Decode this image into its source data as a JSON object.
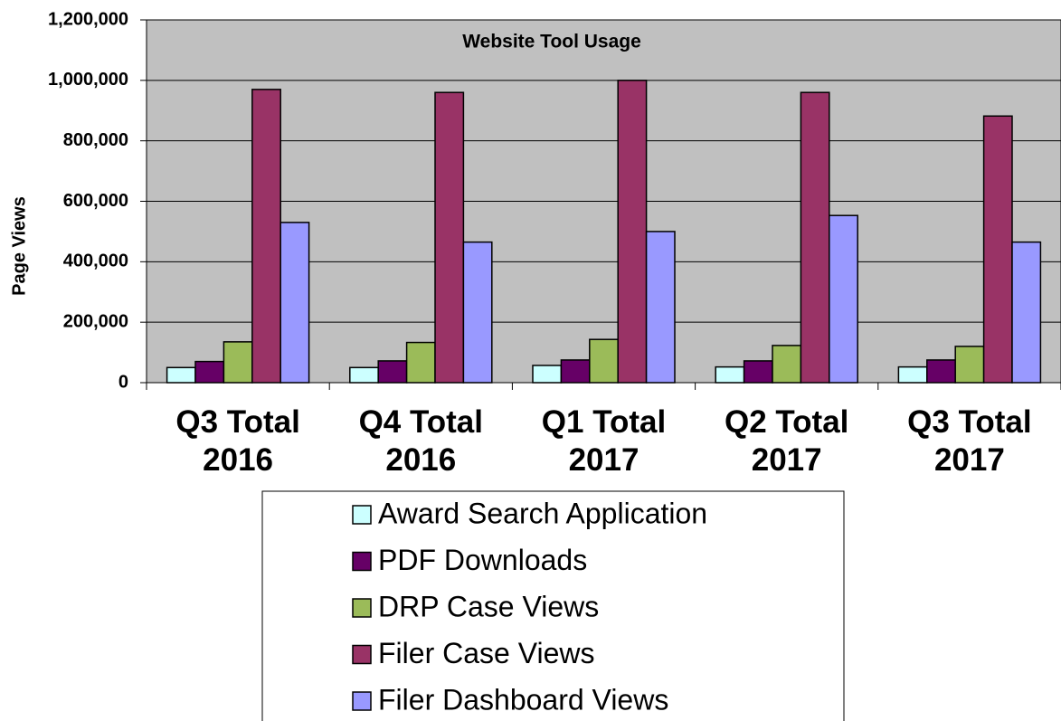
{
  "chart_data": {
    "type": "bar",
    "title": "Website Tool Usage",
    "y_label": "Page Views",
    "categories": [
      "Q3 Total 2016",
      "Q4 Total 2016",
      "Q1 Total 2017",
      "Q2 Total 2017",
      "Q3 Total 2017"
    ],
    "series": [
      {
        "name": "Award Search Application",
        "color": "#ccffff",
        "values": [
          50000,
          50000,
          57000,
          52000,
          52000
        ]
      },
      {
        "name": "PDF Downloads",
        "color": "#660066",
        "values": [
          70000,
          72000,
          75000,
          72000,
          75000
        ]
      },
      {
        "name": "DRP Case Views",
        "color": "#9bbb59",
        "values": [
          135000,
          133000,
          143000,
          123000,
          120000
        ]
      },
      {
        "name": "Filer Case Views",
        "color": "#993366",
        "values": [
          970000,
          960000,
          1000000,
          960000,
          882000
        ]
      },
      {
        "name": "Filer Dashboard Views",
        "color": "#9999ff",
        "values": [
          530000,
          465000,
          500000,
          553000,
          465000
        ]
      }
    ],
    "ylim": [
      0,
      1200000
    ],
    "yticks": [
      0,
      {
        "value": 200000,
        "label": "200,000"
      },
      {
        "value": 400000,
        "label": "400,000"
      },
      {
        "value": 600000,
        "label": "600,000"
      },
      {
        "value": 800000,
        "label": "800,000"
      },
      {
        "value": 1000000,
        "label": "1,000,000"
      },
      {
        "value": 1200000,
        "label": "1,200,000"
      }
    ],
    "grid": true,
    "plot_background": "#c0c0c0",
    "legend": "bottom"
  }
}
